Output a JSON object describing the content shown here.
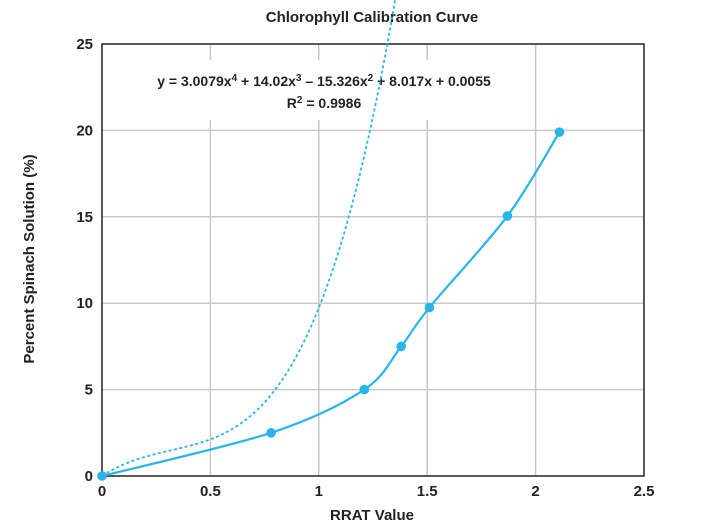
{
  "chart_data": {
    "type": "scatter",
    "title": "Chlorophyll Calibration Curve",
    "xlabel": "RRAT Value",
    "ylabel": "Percent Spinach Solution (%)",
    "xlim": [
      0,
      2.5
    ],
    "ylim": [
      0,
      25
    ],
    "x_ticks": [
      0,
      0.5,
      1,
      1.5,
      2,
      2.5
    ],
    "y_ticks": [
      0,
      5,
      10,
      15,
      20,
      25
    ],
    "x_tick_labels": [
      "0",
      "0.5",
      "1",
      "1.5",
      "2",
      "2.5"
    ],
    "y_tick_labels": [
      "0",
      "5",
      "10",
      "15",
      "20",
      "25"
    ],
    "grid": true,
    "series": [
      {
        "x": [
          0,
          0.78,
          1.21,
          1.38,
          1.51,
          1.87,
          2.11
        ],
        "y": [
          0,
          2.5,
          5.0,
          7.5,
          9.75,
          15.05,
          19.9
        ],
        "style": "solid line with markers",
        "color": "#29b5e8"
      }
    ],
    "trendline": {
      "type": "polynomial",
      "order": 4,
      "coefficients": [
        3.0079,
        14.02,
        -15.326,
        8.017,
        0.0055
      ],
      "style": "dotted",
      "color": "#29b5e8",
      "equation_prefix": "y = 3.0079x",
      "equation_exp4": "4",
      "equation_part2": " + 14.02x",
      "equation_exp3": "3",
      "equation_part3": " – 15.326x",
      "equation_exp2": "2",
      "equation_part4": " + 8.017x + 0.0055",
      "r2_prefix": "R",
      "r2_exp": "2",
      "r2_suffix": " = 0.9986"
    }
  }
}
